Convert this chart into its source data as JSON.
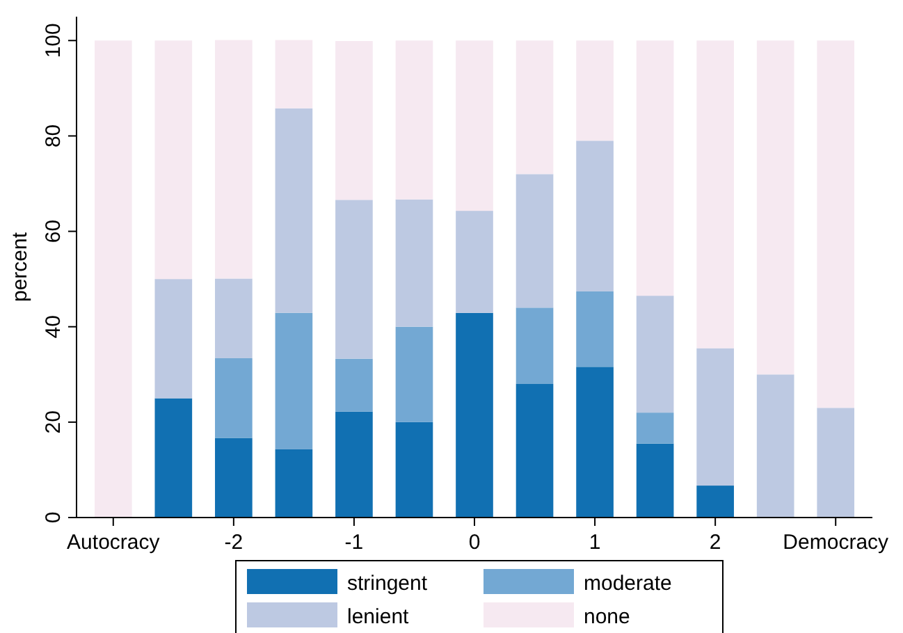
{
  "chart_data": {
    "type": "bar",
    "stacked": true,
    "ylabel": "percent",
    "categories": [
      "Autocracy",
      null,
      "-2",
      null,
      "-1",
      null,
      "0",
      null,
      "1",
      null,
      "2",
      null,
      "Democracy"
    ],
    "series": [
      {
        "name": "stringent",
        "color": "#1170b2",
        "values": [
          0,
          25,
          16.7,
          14.3,
          22.2,
          20,
          42.9,
          28,
          31.6,
          15.5,
          6.7,
          0,
          0
        ]
      },
      {
        "name": "moderate",
        "color": "#73a8d3",
        "values": [
          0,
          0,
          16.7,
          28.6,
          11.1,
          20,
          0,
          16,
          15.8,
          6.5,
          0,
          0,
          0
        ]
      },
      {
        "name": "lenient",
        "color": "#bdc9e2",
        "values": [
          0,
          25,
          16.7,
          42.9,
          33.3,
          26.7,
          21.4,
          28,
          31.6,
          24.5,
          28.8,
          30,
          23
        ]
      },
      {
        "name": "none",
        "color": "#f6e9f1",
        "values": [
          100,
          50,
          50,
          14.3,
          33.3,
          33.3,
          35.7,
          28,
          21,
          53.5,
          64.5,
          70,
          77
        ]
      }
    ],
    "ylim": [
      0,
      105
    ],
    "yticks": [
      0,
      20,
      40,
      60,
      80,
      100
    ],
    "grid": false,
    "legend": "bottom"
  }
}
